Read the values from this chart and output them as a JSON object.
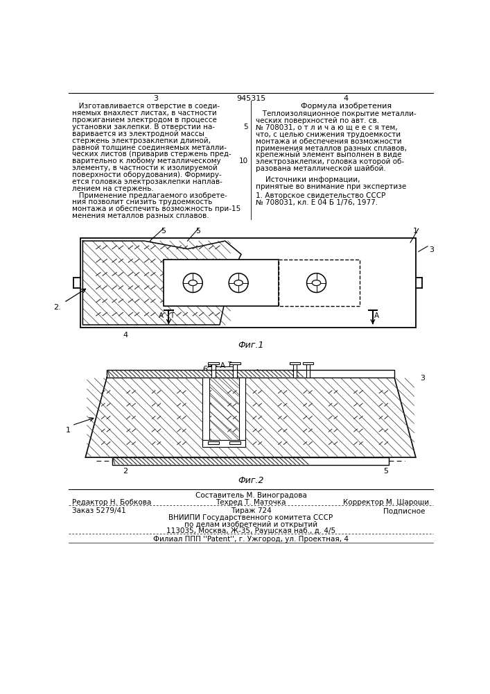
{
  "bg_color": "#ffffff",
  "patent_number": "945315",
  "page_left": "3",
  "page_right": "4",
  "left_column_text": [
    "   Изготавливается отверстие в соеди-",
    "няемых внахлест листах, в частности",
    "прожиганием электродом в процессе",
    "установки заклепки. В отверстии на-",
    "варивается из электродной массы",
    "стержень электрозаклепки длиной,",
    "равной толщине соединяемых металли-",
    "ческих листов (приварив стержень пред-",
    "варительно к любому металлическому",
    "элементу, в частности к изолируемой",
    "поверхности оборудования). Формиру-",
    "ется головка электрозаклепки наплав-",
    "лением на стержень.",
    "   Применение предлагаемого изобрете-",
    "ния позволит снизить трудоемкость",
    "монтажа и обеспечить возможность при-15",
    "менения металлов разных сплавов."
  ],
  "right_column_title": "Формула изобретения",
  "right_column_text": [
    "   Теплоизоляционное покрытие металли-",
    "ческих поверхностей по авт. св.",
    "№ 708031, о т л и ч а ю щ е е с я тем,",
    "что, с целью снижения трудоемкости",
    "монтажа и обеспечения возможности",
    "применения металлов разных сплавов,",
    "крепежный элемент выполнен в виде",
    "электрозаклепки, головка которой об-",
    "разована металлической шайбой."
  ],
  "sources_title": "Источники информации,",
  "sources_subtitle": "принятые во внимание при экспертизе",
  "source_1": "1. Авторское свидетельство СССР",
  "source_2": "№ 708031, кл. Е 04 Б 1/76, 1977.",
  "fig1_caption": "Фиг.1",
  "fig2_caption": "Фиг.2",
  "footer_editor": "Редактор Н. Бобкова",
  "footer_composer": "Составитель М. Виноградова",
  "footer_tech": "Техред Т. Маточка",
  "footer_corrector": "Корректор М. Шароши",
  "footer_order": "Заказ 5279/41",
  "footer_circulation": "Тираж 724",
  "footer_subscription": "Подписное",
  "footer_org": "ВНИИПИ Государственного комитета СССР",
  "footer_org2": "по делам изобретений и открытий",
  "footer_addr": "113035, Москва, Ж-35, Раушская наб., д. 4/5",
  "footer_branch": "Филиал ППП ''Patent'', г. Ужгород, ул. Проектная, 4"
}
